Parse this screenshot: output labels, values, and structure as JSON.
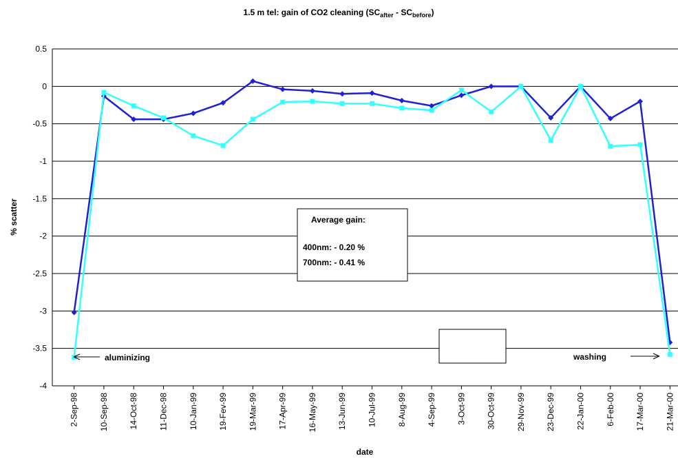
{
  "chart_data": {
    "type": "line",
    "title_parts": [
      "1.5 m tel: gain of CO2 cleaning (SC",
      "after",
      " - SC",
      "before",
      ")"
    ],
    "xlabel": "date",
    "ylabel": "% scatter",
    "categories": [
      "2-Sep-98",
      "10-Sep-98",
      "14-Oct-98",
      "11-Dec-98",
      "10-Jan-99",
      "19-Fev-99",
      "19-Mar-99",
      "17-Apr-99",
      "16-May-99",
      "13-Jun-99",
      "10-Jul-99",
      "8-Aug-99",
      "4-Sep-99",
      "3-Oct-99",
      "30-Oct-99",
      "29-Nov-99",
      "23-Dec-99",
      "22-Jan-00",
      "6-Feb-00",
      "17-Mar-00",
      "21-Mar-00"
    ],
    "series": [
      {
        "name": "400nm",
        "color": "#1f1fd6",
        "marker": "diamond",
        "values": [
          -3.02,
          -0.13,
          -0.44,
          -0.44,
          -0.36,
          -0.22,
          0.07,
          -0.04,
          -0.06,
          -0.1,
          -0.09,
          -0.19,
          -0.26,
          -0.12,
          0,
          0,
          -0.42,
          0,
          -0.43,
          -0.2,
          -3.42
        ]
      },
      {
        "name": "700nm",
        "color": "#33ffff",
        "marker": "square",
        "values": [
          -3.62,
          -0.08,
          -0.26,
          -0.42,
          -0.66,
          -0.79,
          -0.44,
          -0.21,
          -0.2,
          -0.23,
          -0.23,
          -0.29,
          -0.32,
          -0.05,
          -0.34,
          0,
          -0.72,
          0,
          -0.8,
          -0.78,
          -3.58
        ]
      }
    ],
    "ylim": [
      -4,
      0.5
    ],
    "yticks": [
      0.5,
      0,
      -0.5,
      -1,
      -1.5,
      -2,
      -2.5,
      -3,
      -3.5,
      -4
    ],
    "grid": true,
    "legend": "lower right",
    "annotations": {
      "box": [
        "Average gain:",
        "400nm: - 0.20 %",
        "700nm: - 0.41 %"
      ],
      "left_arrow": "aluminizing",
      "right_arrow": "washing"
    }
  }
}
